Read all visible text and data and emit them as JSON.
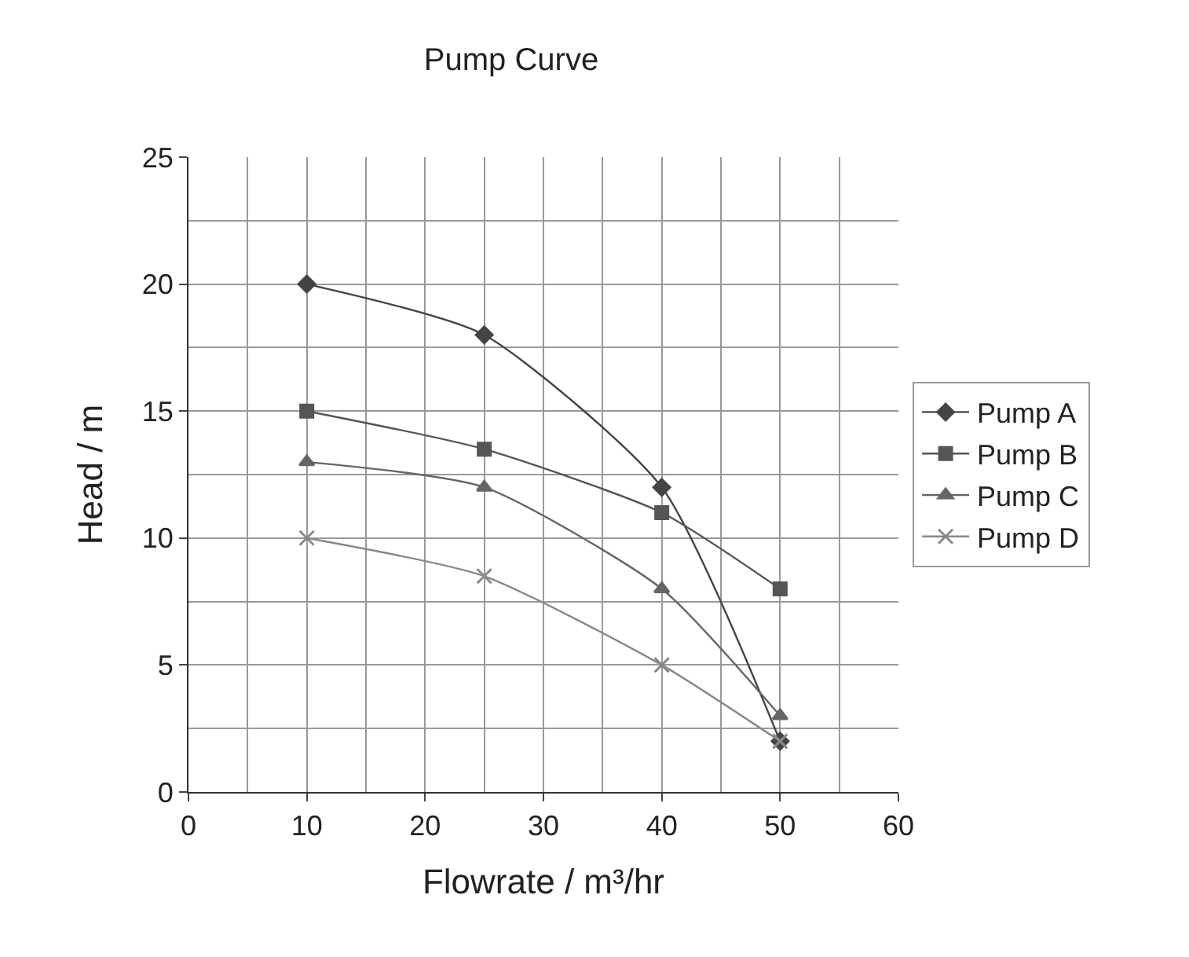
{
  "chart_data": {
    "type": "line",
    "title": "Pump Curve",
    "xlabel": "Flowrate / m³/hr",
    "ylabel": "Head / m",
    "x": [
      10,
      25,
      40,
      50
    ],
    "series": [
      {
        "name": "Pump A",
        "color": "#444444",
        "marker": "diamond",
        "values": [
          20,
          18,
          12,
          2
        ]
      },
      {
        "name": "Pump B",
        "color": "#555555",
        "marker": "square",
        "values": [
          15,
          13.5,
          11,
          8
        ]
      },
      {
        "name": "Pump C",
        "color": "#666666",
        "marker": "triangle",
        "values": [
          13,
          12,
          8,
          3
        ]
      },
      {
        "name": "Pump D",
        "color": "#888888",
        "marker": "cross",
        "values": [
          10,
          8.5,
          5,
          2
        ]
      }
    ],
    "xlim": [
      0,
      60
    ],
    "xticks": [
      0,
      10,
      20,
      30,
      40,
      50,
      60
    ],
    "ylim": [
      0,
      25
    ],
    "yticks": [
      0,
      5,
      10,
      15,
      20,
      25
    ],
    "grid": true,
    "legend": "right"
  }
}
